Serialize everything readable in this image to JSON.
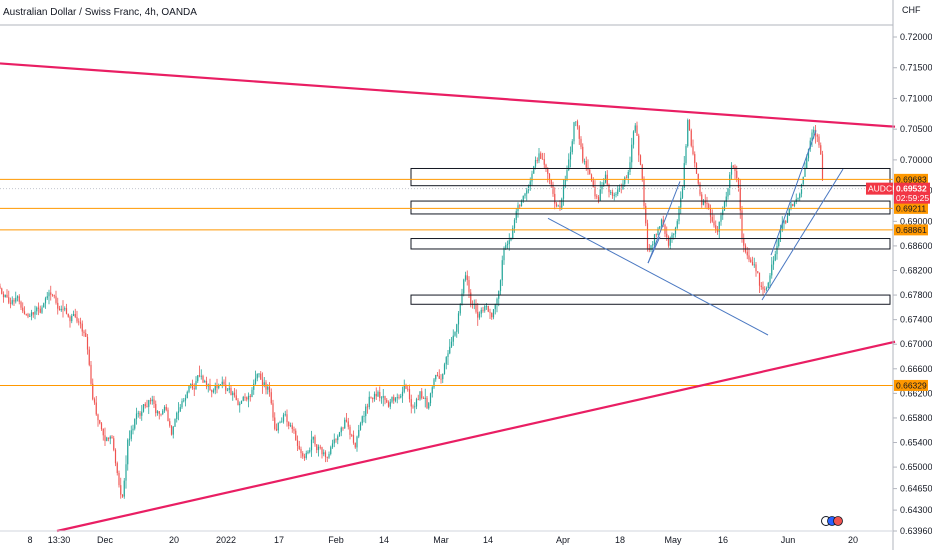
{
  "header": {
    "title": "Australian Dollar / Swiss Franc, 4h, OANDA",
    "currency": "CHF"
  },
  "colors": {
    "up": "#26a69a",
    "down": "#ef5350",
    "trend": "#e91e63",
    "level": "#ff9800",
    "channel": "#4a78c2",
    "box": "#131722",
    "current": "#f23645"
  },
  "chart_data": {
    "type": "candlestick",
    "ylim": [
      0.6396,
      0.7242
    ],
    "yticks": [
      0.72,
      0.715,
      0.71,
      0.705,
      0.7,
      0.695,
      0.69,
      0.686,
      0.682,
      0.678,
      0.674,
      0.67,
      0.666,
      0.662,
      0.658,
      0.654,
      0.65,
      0.6465,
      0.643,
      0.6396
    ],
    "ytick_labels": [
      "0.72000",
      "0.71500",
      "0.71000",
      "0.70500",
      "0.70000",
      "0.69500",
      "0.69000",
      "0.68600",
      "0.68200",
      "0.67800",
      "0.67400",
      "0.67000",
      "0.66600",
      "0.66200",
      "0.65800",
      "0.65400",
      "0.65000",
      "0.64650",
      "0.64300",
      "0.63960"
    ],
    "xticks": [
      {
        "label": "8",
        "t": 30
      },
      {
        "label": "13:30",
        "t": 59
      },
      {
        "label": "Dec",
        "t": 105
      },
      {
        "label": "20",
        "t": 174
      },
      {
        "label": "2022",
        "t": 226
      },
      {
        "label": "17",
        "t": 279
      },
      {
        "label": "Feb",
        "t": 336
      },
      {
        "label": "14",
        "t": 384
      },
      {
        "label": "Mar",
        "t": 441
      },
      {
        "label": "14",
        "t": 488
      },
      {
        "label": "Apr",
        "t": 563
      },
      {
        "label": "18",
        "t": 620
      },
      {
        "label": "May",
        "t": 673
      },
      {
        "label": "16",
        "t": 723
      },
      {
        "label": "Jun",
        "t": 788
      },
      {
        "label": "20",
        "t": 853
      }
    ],
    "anchors": [
      [
        0,
        0.6795
      ],
      [
        10,
        0.6775
      ],
      [
        20,
        0.6765
      ],
      [
        30,
        0.6742
      ],
      [
        40,
        0.6755
      ],
      [
        50,
        0.6785
      ],
      [
        60,
        0.6752
      ],
      [
        70,
        0.6745
      ],
      [
        80,
        0.6738
      ],
      [
        85,
        0.6715
      ],
      [
        92,
        0.6625
      ],
      [
        98,
        0.658
      ],
      [
        105,
        0.6545
      ],
      [
        112,
        0.6545
      ],
      [
        118,
        0.6485
      ],
      [
        122,
        0.6445
      ],
      [
        128,
        0.6545
      ],
      [
        135,
        0.6575
      ],
      [
        143,
        0.6595
      ],
      [
        150,
        0.6615
      ],
      [
        158,
        0.6585
      ],
      [
        165,
        0.6605
      ],
      [
        172,
        0.6555
      ],
      [
        180,
        0.6605
      ],
      [
        190,
        0.6625
      ],
      [
        200,
        0.6645
      ],
      [
        210,
        0.6625
      ],
      [
        220,
        0.6635
      ],
      [
        230,
        0.6625
      ],
      [
        240,
        0.6595
      ],
      [
        250,
        0.6615
      ],
      [
        260,
        0.6645
      ],
      [
        268,
        0.6625
      ],
      [
        275,
        0.6565
      ],
      [
        285,
        0.6595
      ],
      [
        295,
        0.6545
      ],
      [
        305,
        0.6505
      ],
      [
        312,
        0.6545
      ],
      [
        320,
        0.6525
      ],
      [
        328,
        0.6505
      ],
      [
        336,
        0.6545
      ],
      [
        345,
        0.6575
      ],
      [
        355,
        0.6535
      ],
      [
        362,
        0.6585
      ],
      [
        370,
        0.6615
      ],
      [
        378,
        0.6625
      ],
      [
        388,
        0.6595
      ],
      [
        398,
        0.6615
      ],
      [
        405,
        0.6635
      ],
      [
        412,
        0.6605
      ],
      [
        420,
        0.6625
      ],
      [
        428,
        0.6595
      ],
      [
        435,
        0.6645
      ],
      [
        442,
        0.6655
      ],
      [
        450,
        0.6685
      ],
      [
        458,
        0.6745
      ],
      [
        465,
        0.6815
      ],
      [
        470,
        0.6775
      ],
      [
        478,
        0.6745
      ],
      [
        486,
        0.6765
      ],
      [
        492,
        0.6755
      ],
      [
        498,
        0.6775
      ],
      [
        503,
        0.6845
      ],
      [
        510,
        0.6875
      ],
      [
        518,
        0.6915
      ],
      [
        525,
        0.6955
      ],
      [
        532,
        0.6975
      ],
      [
        540,
        0.7005
      ],
      [
        545,
        0.6985
      ],
      [
        552,
        0.6945
      ],
      [
        560,
        0.6915
      ],
      [
        568,
        0.6985
      ],
      [
        575,
        0.7075
      ],
      [
        582,
        0.7005
      ],
      [
        590,
        0.6965
      ],
      [
        598,
        0.6935
      ],
      [
        605,
        0.6975
      ],
      [
        612,
        0.6945
      ],
      [
        620,
        0.6955
      ],
      [
        628,
        0.6975
      ],
      [
        635,
        0.7065
      ],
      [
        642,
        0.6965
      ],
      [
        648,
        0.6845
      ],
      [
        655,
        0.6875
      ],
      [
        662,
        0.6905
      ],
      [
        668,
        0.6865
      ],
      [
        675,
        0.6895
      ],
      [
        682,
        0.6945
      ],
      [
        688,
        0.7065
      ],
      [
        695,
        0.6985
      ],
      [
        702,
        0.6935
      ],
      [
        710,
        0.6915
      ],
      [
        718,
        0.6885
      ],
      [
        725,
        0.6935
      ],
      [
        733,
        0.6995
      ],
      [
        738,
        0.6955
      ],
      [
        742,
        0.6865
      ],
      [
        748,
        0.6845
      ],
      [
        755,
        0.6825
      ],
      [
        762,
        0.6785
      ],
      [
        768,
        0.6805
      ],
      [
        775,
        0.6855
      ],
      [
        782,
        0.6885
      ],
      [
        790,
        0.6915
      ],
      [
        797,
        0.6935
      ],
      [
        803,
        0.6965
      ],
      [
        808,
        0.7025
      ],
      [
        813,
        0.7045
      ],
      [
        818,
        0.7025
      ],
      [
        821,
        0.6995
      ],
      [
        823,
        0.6955
      ]
    ],
    "trendlines": [
      {
        "name": "upper-resistance-line",
        "t1": 0,
        "p1": 0.7157,
        "t2": 895,
        "p2": 0.7054
      },
      {
        "name": "lower-support-line",
        "t1": 57,
        "p1": 0.6396,
        "t2": 895,
        "p2": 0.6704
      }
    ],
    "channel_lines": [
      {
        "name": "falling-channel-line",
        "t1": 548,
        "p1": 0.6905,
        "t2": 768,
        "p2": 0.6715
      },
      {
        "name": "rising-channel-lower-line",
        "t1": 762,
        "p1": 0.6772,
        "t2": 843,
        "p2": 0.6985
      },
      {
        "name": "rising-channel-upper-line",
        "t1": 771,
        "p1": 0.6845,
        "t2": 816,
        "p2": 0.7048
      },
      {
        "name": "minor-upper-line-a",
        "t1": 648,
        "p1": 0.6832,
        "t2": 680,
        "p2": 0.6965
      },
      {
        "name": "minor-upper-line-b",
        "t1": 648,
        "p1": 0.6832,
        "t2": 660,
        "p2": 0.6875
      }
    ],
    "zones": [
      {
        "name": "zone-069700",
        "t1": 411,
        "t2": 890,
        "p_top": 0.6986,
        "p_bot": 0.6958
      },
      {
        "name": "zone-069200",
        "t1": 411,
        "t2": 890,
        "p_top": 0.6933,
        "p_bot": 0.6912
      },
      {
        "name": "zone-068700",
        "t1": 411,
        "t2": 890,
        "p_top": 0.6872,
        "p_bot": 0.6855
      },
      {
        "name": "zone-067800",
        "t1": 411,
        "t2": 890,
        "p_top": 0.678,
        "p_bot": 0.6765
      }
    ],
    "levels": [
      {
        "name": "level-069683",
        "price": 0.69683,
        "label": "0.69683"
      },
      {
        "name": "level-069211",
        "price": 0.69211,
        "label": "0.69211"
      },
      {
        "name": "level-068861",
        "price": 0.68861,
        "label": "0.68861"
      },
      {
        "name": "level-066329",
        "price": 0.66329,
        "label": "0.66329"
      }
    ],
    "current_price": {
      "symbol": "AUDCHF",
      "price": 0.69532,
      "label": "0.69532",
      "countdown": "02:59:25"
    }
  }
}
